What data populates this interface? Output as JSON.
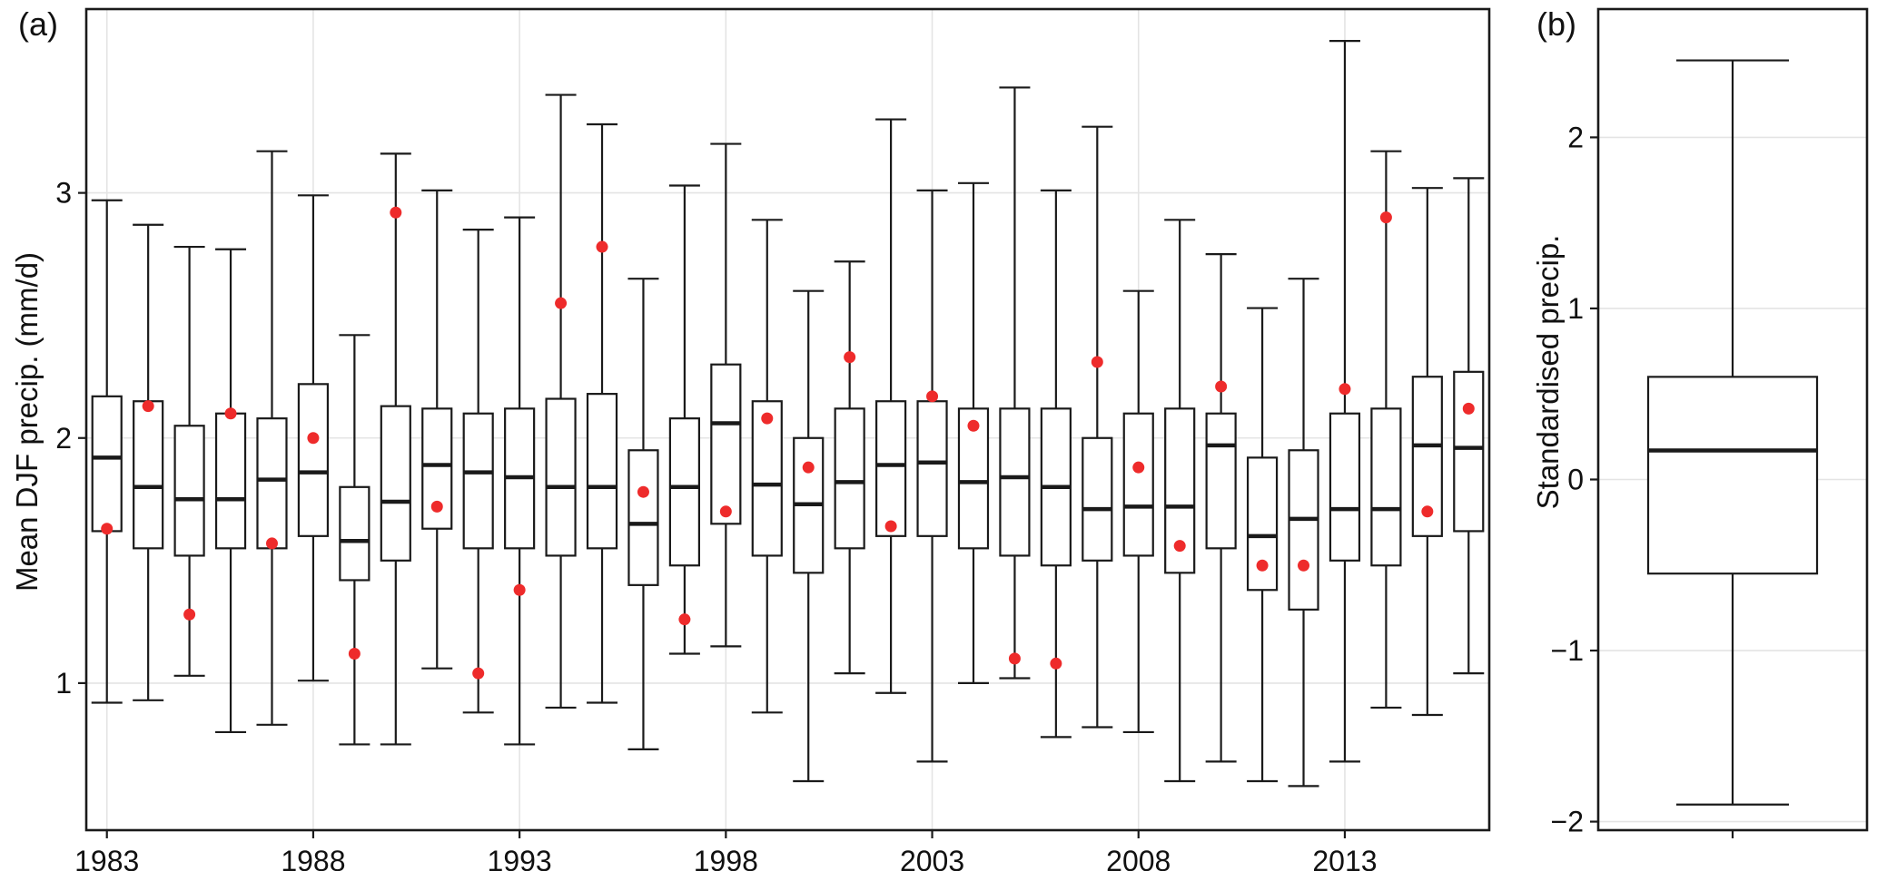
{
  "chart_data": [
    {
      "type": "boxplot",
      "panel_label": "(a)",
      "ylabel": "Mean DJF precip. (mm/d)",
      "xlabel": "",
      "ylim": [
        0.4,
        3.75
      ],
      "yticks": [
        1,
        2,
        3
      ],
      "xticks": [
        1983,
        1988,
        1993,
        1998,
        2003,
        2008,
        2013
      ],
      "grid": "on",
      "legend": "none",
      "dot_series_name": "observation-dot",
      "boxes": [
        {
          "year": 1983,
          "whisker_low": 0.92,
          "q1": 1.62,
          "median": 1.92,
          "q3": 2.17,
          "whisker_high": 2.97,
          "dot": 1.63
        },
        {
          "year": 1984,
          "whisker_low": 0.93,
          "q1": 1.55,
          "median": 1.8,
          "q3": 2.15,
          "whisker_high": 2.87,
          "dot": 2.13
        },
        {
          "year": 1985,
          "whisker_low": 1.03,
          "q1": 1.52,
          "median": 1.75,
          "q3": 2.05,
          "whisker_high": 2.78,
          "dot": 1.28
        },
        {
          "year": 1986,
          "whisker_low": 0.8,
          "q1": 1.55,
          "median": 1.75,
          "q3": 2.1,
          "whisker_high": 2.77,
          "dot": 2.1
        },
        {
          "year": 1987,
          "whisker_low": 0.83,
          "q1": 1.55,
          "median": 1.83,
          "q3": 2.08,
          "whisker_high": 3.17,
          "dot": 1.57
        },
        {
          "year": 1988,
          "whisker_low": 1.01,
          "q1": 1.6,
          "median": 1.86,
          "q3": 2.22,
          "whisker_high": 2.99,
          "dot": 2.0
        },
        {
          "year": 1989,
          "whisker_low": 0.75,
          "q1": 1.42,
          "median": 1.58,
          "q3": 1.8,
          "whisker_high": 2.42,
          "dot": 1.12
        },
        {
          "year": 1990,
          "whisker_low": 0.75,
          "q1": 1.5,
          "median": 1.74,
          "q3": 2.13,
          "whisker_high": 3.16,
          "dot": 2.92
        },
        {
          "year": 1991,
          "whisker_low": 1.06,
          "q1": 1.63,
          "median": 1.89,
          "q3": 2.12,
          "whisker_high": 3.01,
          "dot": 1.72
        },
        {
          "year": 1992,
          "whisker_low": 0.88,
          "q1": 1.55,
          "median": 1.86,
          "q3": 2.1,
          "whisker_high": 2.85,
          "dot": 1.04
        },
        {
          "year": 1993,
          "whisker_low": 0.75,
          "q1": 1.55,
          "median": 1.84,
          "q3": 2.12,
          "whisker_high": 2.9,
          "dot": 1.38
        },
        {
          "year": 1994,
          "whisker_low": 0.9,
          "q1": 1.52,
          "median": 1.8,
          "q3": 2.16,
          "whisker_high": 3.4,
          "dot": 2.55
        },
        {
          "year": 1995,
          "whisker_low": 0.92,
          "q1": 1.55,
          "median": 1.8,
          "q3": 2.18,
          "whisker_high": 3.28,
          "dot": 2.78
        },
        {
          "year": 1996,
          "whisker_low": 0.73,
          "q1": 1.4,
          "median": 1.65,
          "q3": 1.95,
          "whisker_high": 2.65,
          "dot": 1.78
        },
        {
          "year": 1997,
          "whisker_low": 1.12,
          "q1": 1.48,
          "median": 1.8,
          "q3": 2.08,
          "whisker_high": 3.03,
          "dot": 1.26
        },
        {
          "year": 1998,
          "whisker_low": 1.15,
          "q1": 1.65,
          "median": 2.06,
          "q3": 2.3,
          "whisker_high": 3.2,
          "dot": 1.7
        },
        {
          "year": 1999,
          "whisker_low": 0.88,
          "q1": 1.52,
          "median": 1.81,
          "q3": 2.15,
          "whisker_high": 2.89,
          "dot": 2.08
        },
        {
          "year": 2000,
          "whisker_low": 0.6,
          "q1": 1.45,
          "median": 1.73,
          "q3": 2.0,
          "whisker_high": 2.6,
          "dot": 1.88
        },
        {
          "year": 2001,
          "whisker_low": 1.04,
          "q1": 1.55,
          "median": 1.82,
          "q3": 2.12,
          "whisker_high": 2.72,
          "dot": 2.33
        },
        {
          "year": 2002,
          "whisker_low": 0.96,
          "q1": 1.6,
          "median": 1.89,
          "q3": 2.15,
          "whisker_high": 3.3,
          "dot": 1.64
        },
        {
          "year": 2003,
          "whisker_low": 0.68,
          "q1": 1.6,
          "median": 1.9,
          "q3": 2.15,
          "whisker_high": 3.01,
          "dot": 2.17
        },
        {
          "year": 2004,
          "whisker_low": 1.0,
          "q1": 1.55,
          "median": 1.82,
          "q3": 2.12,
          "whisker_high": 3.04,
          "dot": 2.05
        },
        {
          "year": 2005,
          "whisker_low": 1.02,
          "q1": 1.52,
          "median": 1.84,
          "q3": 2.12,
          "whisker_high": 3.43,
          "dot": 1.1
        },
        {
          "year": 2006,
          "whisker_low": 0.78,
          "q1": 1.48,
          "median": 1.8,
          "q3": 2.12,
          "whisker_high": 3.01,
          "dot": 1.08
        },
        {
          "year": 2007,
          "whisker_low": 0.82,
          "q1": 1.5,
          "median": 1.71,
          "q3": 2.0,
          "whisker_high": 3.27,
          "dot": 2.31
        },
        {
          "year": 2008,
          "whisker_low": 0.8,
          "q1": 1.52,
          "median": 1.72,
          "q3": 2.1,
          "whisker_high": 2.6,
          "dot": 1.88
        },
        {
          "year": 2009,
          "whisker_low": 0.6,
          "q1": 1.45,
          "median": 1.72,
          "q3": 2.12,
          "whisker_high": 2.89,
          "dot": 1.56
        },
        {
          "year": 2010,
          "whisker_low": 0.68,
          "q1": 1.55,
          "median": 1.97,
          "q3": 2.1,
          "whisker_high": 2.75,
          "dot": 2.21
        },
        {
          "year": 2011,
          "whisker_low": 0.6,
          "q1": 1.38,
          "median": 1.6,
          "q3": 1.92,
          "whisker_high": 2.53,
          "dot": 1.48
        },
        {
          "year": 2012,
          "whisker_low": 0.58,
          "q1": 1.3,
          "median": 1.67,
          "q3": 1.95,
          "whisker_high": 2.65,
          "dot": 1.48
        },
        {
          "year": 2013,
          "whisker_low": 0.68,
          "q1": 1.5,
          "median": 1.71,
          "q3": 2.1,
          "whisker_high": 3.62,
          "dot": 2.2
        },
        {
          "year": 2014,
          "whisker_low": 0.9,
          "q1": 1.48,
          "median": 1.71,
          "q3": 2.12,
          "whisker_high": 3.17,
          "dot": 2.9
        },
        {
          "year": 2015,
          "whisker_low": 0.87,
          "q1": 1.6,
          "median": 1.97,
          "q3": 2.25,
          "whisker_high": 3.02,
          "dot": 1.7
        },
        {
          "year": 2016,
          "whisker_low": 1.04,
          "q1": 1.62,
          "median": 1.96,
          "q3": 2.27,
          "whisker_high": 3.06,
          "dot": 2.12
        }
      ]
    },
    {
      "type": "boxplot",
      "panel_label": "(b)",
      "ylabel": "Standardised precip.",
      "xlabel": "",
      "ylim": [
        -2.05,
        2.75
      ],
      "yticks": [
        -2,
        -1,
        0,
        1,
        2
      ],
      "xticks": [],
      "grid": "on",
      "legend": "none",
      "boxes": [
        {
          "whisker_low": -1.9,
          "q1": -0.55,
          "median": 0.17,
          "q3": 0.6,
          "whisker_high": 2.45,
          "dot": null
        }
      ]
    }
  ],
  "style": {
    "dot_color": "#ee2b2b",
    "grid_color": "#e4e4e4",
    "stroke_color": "#1a1a1a",
    "box_fill": "#ffffff"
  }
}
